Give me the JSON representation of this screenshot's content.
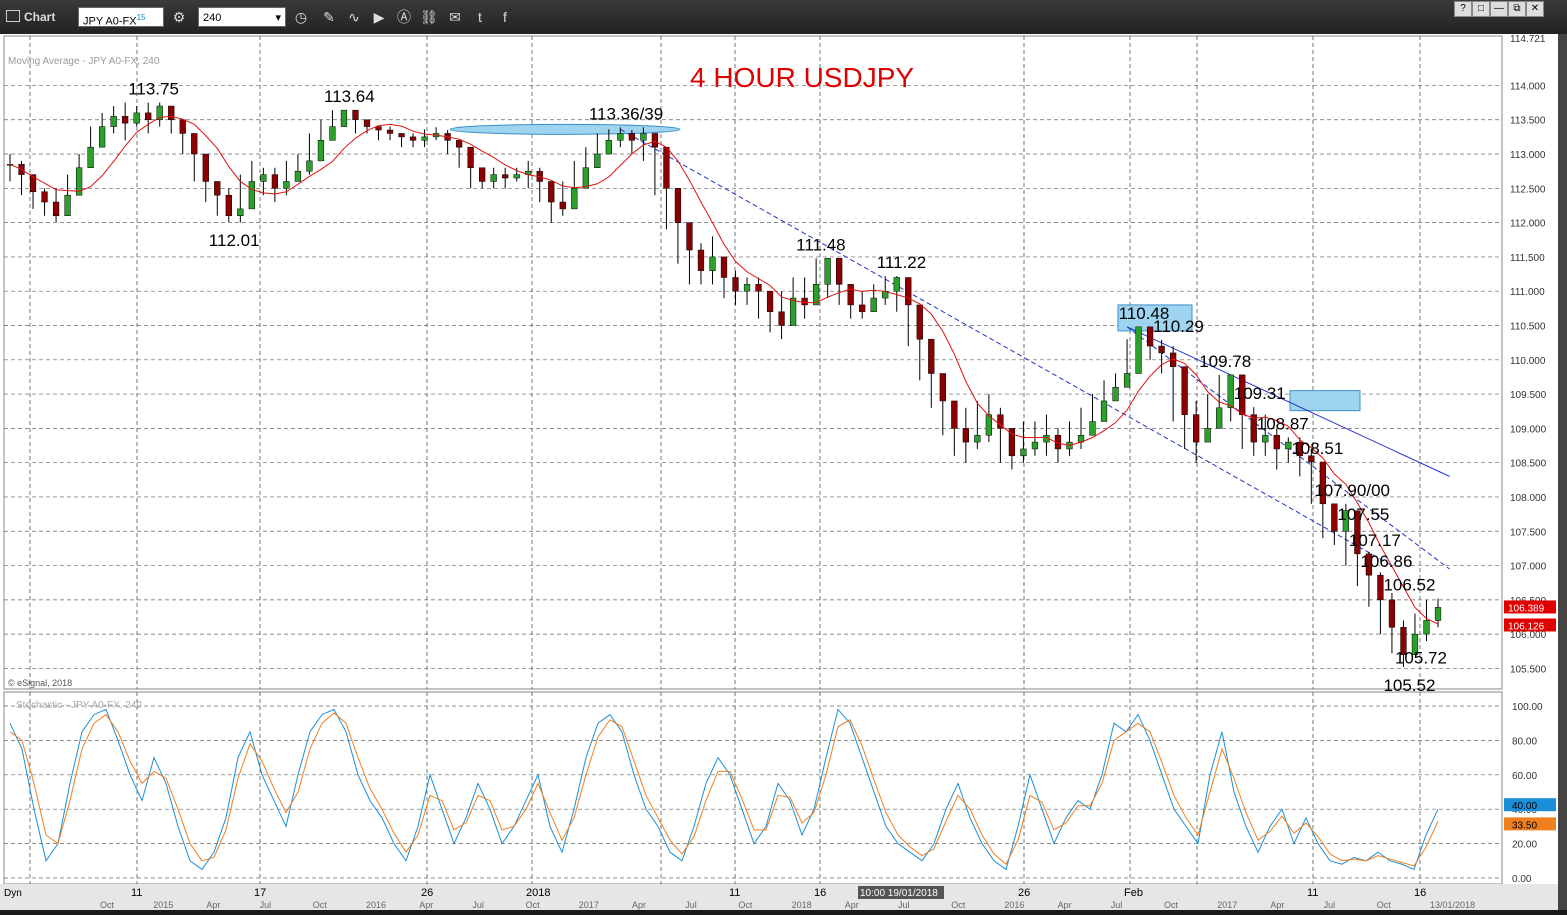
{
  "window": {
    "title": "Chart",
    "symbol": "JPY A0-FX",
    "symbol_sup": "15",
    "interval": "240",
    "window_buttons": [
      "?",
      "□",
      "—",
      "⧉",
      "✕"
    ]
  },
  "colors": {
    "up_candle": "#2ca02c",
    "down_candle": "#8b0000",
    "moving_average": "#e01010",
    "trendline": "#2233cc",
    "stoch_k": "#1a8fd8",
    "stoch_d": "#f07f20",
    "highlight_box": "#9fd4f0",
    "title_color": "#e00000",
    "price_tag_red": "#e00000"
  },
  "labels": {
    "ma_label": "Moving Average - JPY A0-FX, 240",
    "esignal": "© eSignal, 2018",
    "stoch_label": "Stochastic - JPY A0-FX, 240",
    "crosshair_time": "10:00 19/01/2018",
    "dyn": "Dyn"
  },
  "chart_data": {
    "type": "candlestick",
    "title": "4 HOUR USDJPY",
    "ylim": [
      105.2,
      114.721
    ],
    "y_ticks": [
      "114.000",
      "113.500",
      "113.000",
      "112.500",
      "112.000",
      "111.500",
      "111.000",
      "110.500",
      "110.000",
      "109.500",
      "109.000",
      "108.500",
      "108.000",
      "107.500",
      "107.000",
      "106.500",
      "106.000",
      "105.500"
    ],
    "top_price": "114.721",
    "current_prices": [
      "106.389",
      "106.126"
    ],
    "x_ticks_upper": [
      "11",
      "17",
      "26",
      "2018",
      "11",
      "16",
      "26",
      "Feb",
      "11",
      "16"
    ],
    "x_ticks_lower": [
      "Oct",
      "2015",
      "Apr",
      "Jul",
      "Oct",
      "2016",
      "Apr",
      "Jul",
      "Oct",
      "2017",
      "Apr",
      "Jul",
      "Oct",
      "2018",
      "Apr",
      "Jul",
      "Oct",
      "2016",
      "Apr",
      "Jul",
      "Oct",
      "2017",
      "Apr",
      "Jul",
      "Oct",
      "13/01/2018"
    ],
    "close_series": [
      112.85,
      112.7,
      112.45,
      112.3,
      112.1,
      112.4,
      112.8,
      113.1,
      113.4,
      113.55,
      113.45,
      113.6,
      113.5,
      113.7,
      113.5,
      113.3,
      113.0,
      112.6,
      112.4,
      112.1,
      112.2,
      112.6,
      112.7,
      112.5,
      112.6,
      112.75,
      112.9,
      113.2,
      113.4,
      113.64,
      113.5,
      113.4,
      113.35,
      113.3,
      113.25,
      113.2,
      113.25,
      113.3,
      113.2,
      113.1,
      112.8,
      112.6,
      112.7,
      112.65,
      112.7,
      112.75,
      112.6,
      112.3,
      112.2,
      112.5,
      112.8,
      113.0,
      113.2,
      113.3,
      113.2,
      113.3,
      113.1,
      112.5,
      112.0,
      111.6,
      111.3,
      111.5,
      111.2,
      111.0,
      111.1,
      111.0,
      110.7,
      110.5,
      110.9,
      110.8,
      111.1,
      111.48,
      111.1,
      110.8,
      110.7,
      110.9,
      111.0,
      111.2,
      110.8,
      110.3,
      109.8,
      109.4,
      109.0,
      108.8,
      108.9,
      109.2,
      109.0,
      108.6,
      108.7,
      108.8,
      108.9,
      108.7,
      108.8,
      108.9,
      109.1,
      109.4,
      109.6,
      109.8,
      110.48,
      110.2,
      110.1,
      109.9,
      109.2,
      108.8,
      109.0,
      109.3,
      109.78,
      109.2,
      108.8,
      108.9,
      108.7,
      108.8,
      108.6,
      108.51,
      107.9,
      107.5,
      107.8,
      107.17,
      106.86,
      106.5,
      106.1,
      105.7,
      106.0,
      106.2,
      106.39
    ],
    "high_series": [
      113.0,
      112.9,
      112.6,
      112.5,
      112.5,
      112.7,
      113.0,
      113.4,
      113.6,
      113.7,
      113.75,
      113.7,
      113.75,
      113.75,
      113.7,
      113.5,
      113.2,
      112.9,
      112.6,
      112.5,
      112.7,
      112.9,
      112.8,
      112.8,
      112.9,
      113.0,
      113.3,
      113.5,
      113.64,
      113.64,
      113.6,
      113.5,
      113.4,
      113.4,
      113.3,
      113.3,
      113.36,
      113.39,
      113.35,
      113.2,
      113.0,
      112.8,
      112.8,
      112.8,
      112.8,
      112.9,
      112.8,
      112.5,
      112.6,
      112.9,
      113.1,
      113.3,
      113.36,
      113.39,
      113.35,
      113.39,
      113.3,
      113.0,
      112.5,
      112.0,
      111.7,
      111.8,
      111.5,
      111.3,
      111.2,
      111.2,
      111.0,
      111.0,
      111.2,
      111.2,
      111.48,
      111.48,
      111.4,
      111.1,
      111.0,
      111.1,
      111.22,
      111.22,
      111.1,
      110.7,
      110.2,
      109.8,
      109.4,
      109.3,
      109.4,
      109.5,
      109.3,
      109.0,
      109.1,
      109.1,
      109.2,
      109.0,
      109.1,
      109.3,
      109.5,
      109.7,
      109.8,
      110.3,
      110.48,
      110.48,
      110.29,
      110.2,
      109.9,
      109.4,
      109.5,
      109.78,
      109.78,
      109.6,
      109.31,
      109.2,
      109.0,
      108.87,
      108.87,
      108.7,
      108.51,
      107.9,
      107.9,
      107.6,
      107.2,
      106.9,
      106.6,
      106.2,
      106.3,
      106.5,
      106.52
    ],
    "low_series": [
      112.6,
      112.4,
      112.2,
      112.1,
      112.01,
      112.2,
      112.6,
      112.9,
      113.2,
      113.3,
      113.2,
      113.4,
      113.3,
      113.4,
      113.3,
      113.0,
      112.6,
      112.3,
      112.1,
      112.01,
      112.0,
      112.4,
      112.4,
      112.3,
      112.4,
      112.6,
      112.7,
      113.0,
      113.3,
      113.4,
      113.3,
      113.3,
      113.2,
      113.2,
      113.1,
      113.1,
      113.1,
      113.2,
      113.0,
      112.8,
      112.5,
      112.5,
      112.5,
      112.5,
      112.6,
      112.5,
      112.3,
      112.0,
      112.1,
      112.4,
      112.7,
      112.9,
      113.1,
      113.1,
      113.0,
      112.9,
      112.4,
      111.9,
      111.4,
      111.1,
      111.1,
      111.1,
      110.9,
      110.8,
      110.8,
      110.6,
      110.4,
      110.3,
      110.6,
      110.6,
      110.9,
      110.9,
      110.8,
      110.6,
      110.6,
      110.7,
      110.8,
      110.7,
      110.2,
      109.7,
      109.3,
      108.9,
      108.6,
      108.5,
      108.7,
      108.8,
      108.5,
      108.4,
      108.5,
      108.6,
      108.6,
      108.5,
      108.6,
      108.7,
      108.9,
      109.2,
      109.4,
      109.6,
      110.0,
      110.0,
      109.8,
      109.1,
      108.7,
      108.5,
      108.8,
      109.1,
      109.1,
      108.7,
      108.6,
      108.6,
      108.4,
      108.5,
      108.3,
      107.9,
      107.4,
      107.3,
      107.0,
      106.7,
      106.4,
      106.0,
      105.72,
      105.52,
      105.7,
      105.9,
      106.1
    ],
    "ma_series_period": 20,
    "trendlines": [
      {
        "from": [
          53,
          113.36
        ],
        "to": [
          120,
          107.0
        ],
        "style": "dashed"
      },
      {
        "from": [
          97,
          110.48
        ],
        "to": [
          125,
          108.3
        ],
        "style": "solid"
      },
      {
        "from": [
          97,
          110.48
        ],
        "to": [
          125,
          106.95
        ],
        "style": "dashed"
      }
    ],
    "annotations": [
      {
        "text": "113.75",
        "i": 12,
        "price": 113.75
      },
      {
        "text": "112.01",
        "i": 19,
        "price": 112.01
      },
      {
        "text": "113.64",
        "i": 29,
        "price": 113.64
      },
      {
        "text": "113.36/39",
        "i": 52,
        "price": 113.39
      },
      {
        "text": "111.48",
        "i": 70,
        "price": 111.48
      },
      {
        "text": "111.22",
        "i": 77,
        "price": 111.22
      },
      {
        "text": "110.48",
        "i": 98,
        "price": 110.48
      },
      {
        "text": "110.29",
        "i": 101,
        "price": 110.29
      },
      {
        "text": "109.78",
        "i": 105,
        "price": 109.78
      },
      {
        "text": "109.31",
        "i": 108,
        "price": 109.31
      },
      {
        "text": "108.87",
        "i": 110,
        "price": 108.87
      },
      {
        "text": "108.51",
        "i": 113,
        "price": 108.51
      },
      {
        "text": "107.90/00",
        "i": 115,
        "price": 107.9
      },
      {
        "text": "107.55",
        "i": 117,
        "price": 107.55
      },
      {
        "text": "107.17",
        "i": 118,
        "price": 107.17
      },
      {
        "text": "106.86",
        "i": 119,
        "price": 106.86
      },
      {
        "text": "106.52",
        "i": 121,
        "price": 106.52
      },
      {
        "text": "105.72",
        "i": 122,
        "price": 105.72
      },
      {
        "text": "105.52",
        "i": 121,
        "price": 105.52
      }
    ],
    "stochastic": {
      "ylim": [
        0,
        100
      ],
      "y_ticks": [
        "100.00",
        "80.00",
        "60.00",
        "40.00",
        "20.00",
        "0.00"
      ],
      "current_k": "40.00",
      "current_d": "33.50",
      "k_series": [
        90,
        75,
        40,
        10,
        20,
        55,
        85,
        95,
        98,
        80,
        60,
        45,
        70,
        55,
        30,
        10,
        5,
        15,
        35,
        70,
        85,
        60,
        45,
        30,
        60,
        85,
        95,
        98,
        85,
        60,
        45,
        35,
        20,
        10,
        30,
        60,
        40,
        20,
        35,
        55,
        40,
        20,
        30,
        45,
        60,
        30,
        15,
        40,
        70,
        90,
        95,
        85,
        60,
        40,
        30,
        15,
        10,
        30,
        55,
        70,
        60,
        40,
        20,
        30,
        55,
        45,
        25,
        40,
        70,
        98,
        90,
        70,
        50,
        30,
        20,
        15,
        10,
        20,
        40,
        55,
        35,
        20,
        10,
        5,
        30,
        60,
        40,
        20,
        35,
        45,
        40,
        60,
        90,
        85,
        95,
        80,
        60,
        40,
        30,
        20,
        60,
        85,
        50,
        30,
        15,
        30,
        40,
        20,
        35,
        20,
        10,
        8,
        12,
        10,
        15,
        10,
        8,
        5,
        25,
        40
      ],
      "d_series": [
        85,
        80,
        55,
        25,
        20,
        45,
        75,
        90,
        95,
        85,
        68,
        55,
        62,
        58,
        40,
        20,
        10,
        12,
        28,
        58,
        78,
        68,
        52,
        38,
        50,
        75,
        90,
        96,
        90,
        70,
        52,
        40,
        26,
        15,
        25,
        48,
        45,
        28,
        32,
        48,
        45,
        28,
        30,
        40,
        55,
        38,
        22,
        35,
        60,
        82,
        92,
        88,
        68,
        48,
        35,
        22,
        14,
        24,
        45,
        62,
        62,
        46,
        28,
        28,
        48,
        47,
        32,
        38,
        60,
        88,
        92,
        77,
        57,
        38,
        25,
        18,
        13,
        17,
        33,
        48,
        40,
        25,
        14,
        8,
        22,
        48,
        44,
        28,
        32,
        42,
        42,
        55,
        80,
        85,
        90,
        85,
        67,
        48,
        35,
        25,
        50,
        75,
        58,
        38,
        22,
        27,
        36,
        26,
        32,
        24,
        14,
        10,
        11,
        10,
        13,
        11,
        9,
        7,
        18,
        33
      ]
    }
  }
}
